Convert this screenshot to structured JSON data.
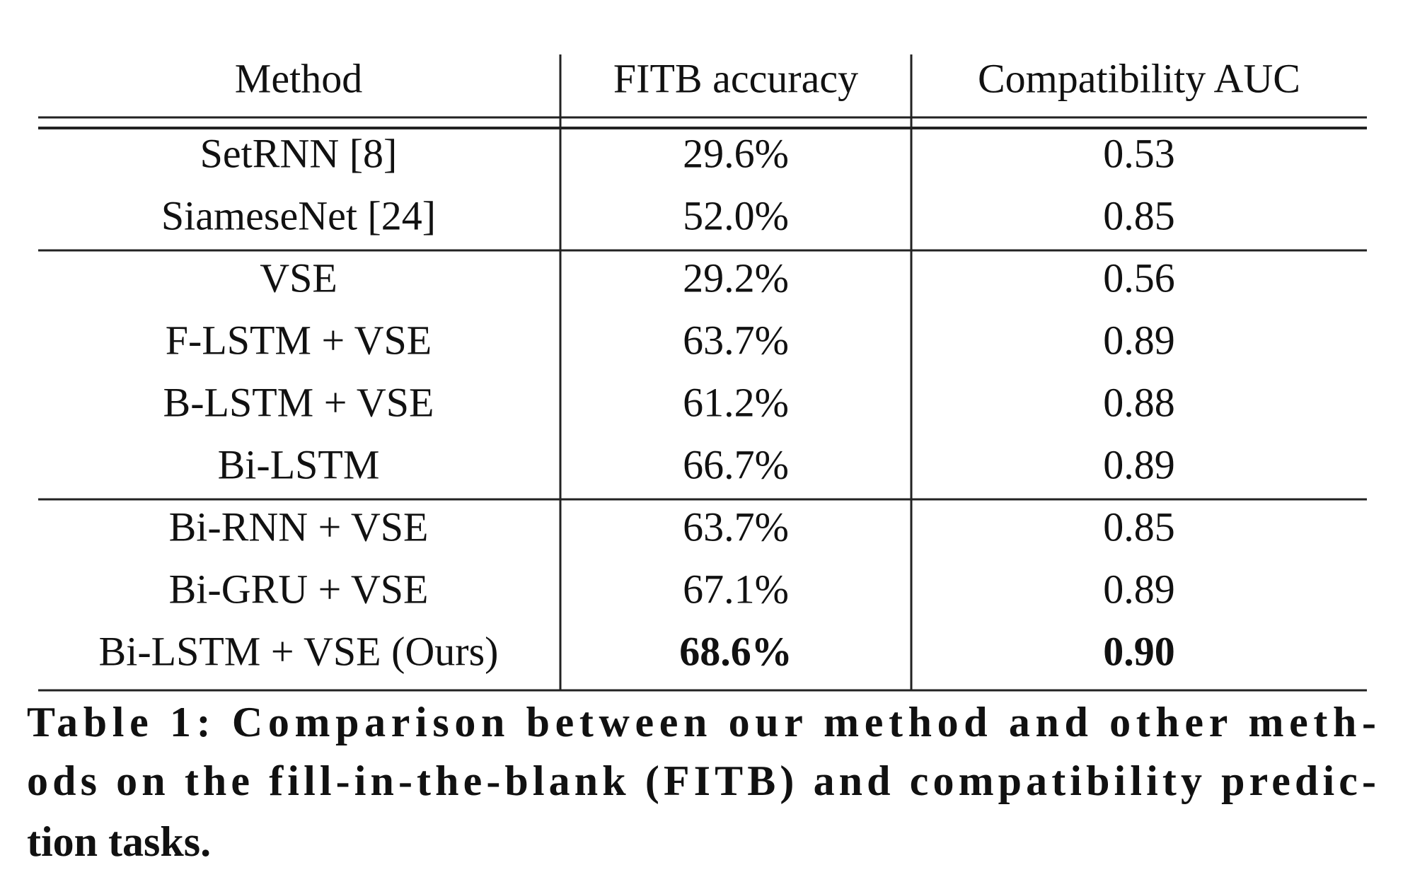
{
  "table": {
    "header": [
      "Method",
      "FITB accuracy",
      "Compatibility AUC"
    ],
    "groups": [
      [
        {
          "cells": [
            "SetRNN [8]",
            "29.6%",
            "0.53"
          ]
        },
        {
          "cells": [
            "SiameseNet [24]",
            "52.0%",
            "0.85"
          ]
        }
      ],
      [
        {
          "cells": [
            "VSE",
            "29.2%",
            "0.56"
          ]
        },
        {
          "cells": [
            "F-LSTM + VSE",
            "63.7%",
            "0.89"
          ]
        },
        {
          "cells": [
            "B-LSTM + VSE",
            "61.2%",
            "0.88"
          ]
        },
        {
          "cells": [
            "Bi-LSTM",
            "66.7%",
            "0.89"
          ]
        }
      ],
      [
        {
          "cells": [
            "Bi-RNN + VSE",
            "63.7%",
            "0.85"
          ]
        },
        {
          "cells": [
            "Bi-GRU + VSE",
            "67.1%",
            "0.89"
          ]
        },
        {
          "cells": [
            "Bi-LSTM + VSE (Ours)",
            "68.6%",
            "0.90"
          ],
          "bold_values": true
        }
      ]
    ]
  },
  "caption": [
    "Table 1: Comparison between our method and other meth-",
    "ods on the fill-in-the-blank (FITB) and compatibility predic-",
    "tion tasks."
  ]
}
